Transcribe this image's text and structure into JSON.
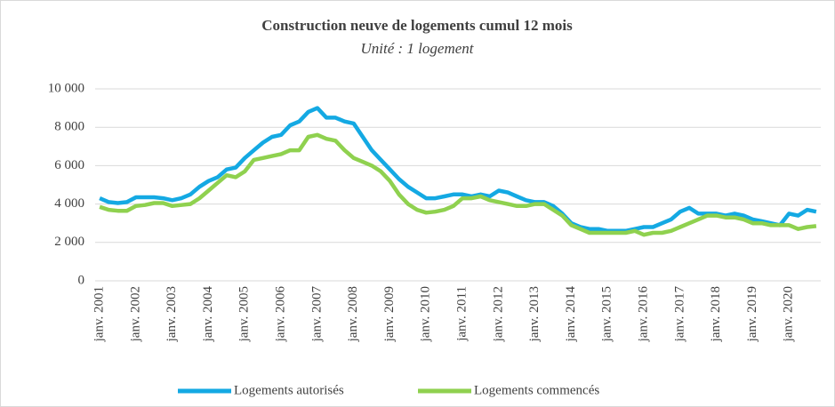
{
  "chart_data": {
    "type": "line",
    "title": "Construction neuve de logements cumul 12 mois",
    "subtitle": "Unité : 1 logement",
    "categories": [
      "janv. 2001",
      null,
      null,
      null,
      "janv. 2002",
      null,
      null,
      null,
      "janv. 2003",
      null,
      null,
      null,
      "janv. 2004",
      null,
      null,
      null,
      "janv. 2005",
      null,
      null,
      null,
      "janv. 2006",
      null,
      null,
      null,
      "janv. 2007",
      null,
      null,
      null,
      "janv. 2008",
      null,
      null,
      null,
      "janv. 2009",
      null,
      null,
      null,
      "janv. 2010",
      null,
      null,
      null,
      "janv. 2011",
      null,
      null,
      null,
      "janv. 2012",
      null,
      null,
      null,
      "janv. 2013",
      null,
      null,
      null,
      "janv. 2014",
      null,
      null,
      null,
      "janv. 2015",
      null,
      null,
      null,
      "janv. 2016",
      null,
      null,
      null,
      "janv. 2017",
      null,
      null,
      null,
      "janv. 2018",
      null,
      null,
      null,
      "janv. 2019",
      null,
      null,
      null,
      "janv. 2020",
      null,
      null,
      null
    ],
    "series": [
      {
        "name": "Logements autorisés",
        "color": "#14a9e3",
        "values": [
          4300,
          4100,
          4050,
          4100,
          4350,
          4350,
          4350,
          4300,
          4200,
          4300,
          4500,
          4900,
          5200,
          5400,
          5800,
          5900,
          6400,
          6800,
          7200,
          7500,
          7600,
          8100,
          8300,
          8800,
          9000,
          8500,
          8500,
          8300,
          8200,
          7500,
          6800,
          6300,
          5800,
          5300,
          4900,
          4600,
          4300,
          4300,
          4400,
          4500,
          4500,
          4400,
          4500,
          4400,
          4700,
          4600,
          4400,
          4200,
          4100,
          4100,
          3900,
          3500,
          3000,
          2800,
          2700,
          2700,
          2600,
          2600,
          2600,
          2700,
          2800,
          2800,
          3000,
          3200,
          3600,
          3800,
          3500,
          3500,
          3500,
          3400,
          3500,
          3400,
          3200,
          3100,
          3000,
          2900,
          3500,
          3400,
          3700,
          3600
        ]
      },
      {
        "name": "Logements commencés",
        "color": "#8fd14f",
        "values": [
          3850,
          3700,
          3650,
          3650,
          3900,
          3950,
          4050,
          4050,
          3900,
          3950,
          4000,
          4300,
          4700,
          5100,
          5500,
          5400,
          5700,
          6300,
          6400,
          6500,
          6600,
          6800,
          6800,
          7500,
          7600,
          7400,
          7300,
          6800,
          6400,
          6200,
          6000,
          5700,
          5200,
          4500,
          4000,
          3700,
          3550,
          3600,
          3700,
          3900,
          4300,
          4300,
          4400,
          4200,
          4100,
          4000,
          3900,
          3900,
          4000,
          4000,
          3700,
          3400,
          2900,
          2700,
          2500,
          2500,
          2500,
          2500,
          2500,
          2600,
          2400,
          2500,
          2500,
          2600,
          2800,
          3000,
          3200,
          3400,
          3400,
          3300,
          3300,
          3200,
          3000,
          3000,
          2900,
          2900,
          2900,
          2700,
          2800,
          2850
        ]
      }
    ],
    "ylim": [
      0,
      10000
    ],
    "yticks": [
      0,
      {
        "value": 2000,
        "label": "2 000"
      },
      {
        "value": 4000,
        "label": "4 000"
      },
      {
        "value": 6000,
        "label": "6 000"
      },
      {
        "value": 8000,
        "label": "8 000"
      },
      {
        "value": 10000,
        "label": "10 000"
      }
    ],
    "grid": true,
    "legend": "bottom"
  }
}
